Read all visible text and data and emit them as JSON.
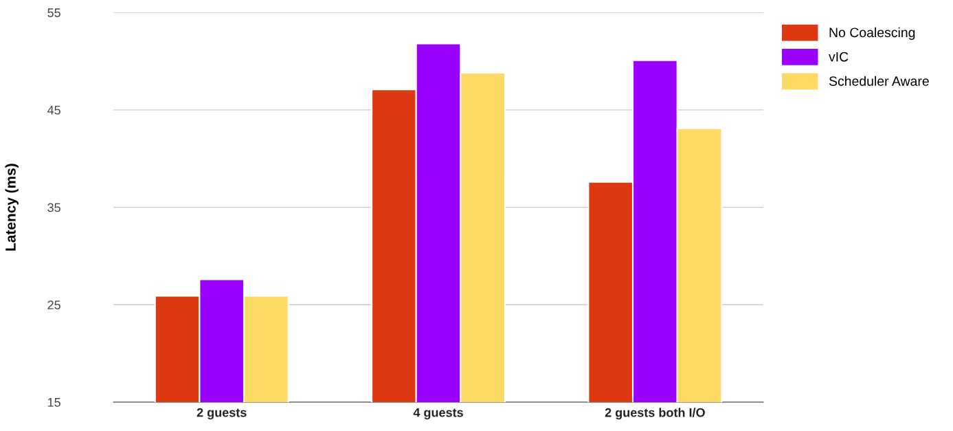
{
  "chart_data": {
    "type": "bar",
    "ylabel": "Latency (ms)",
    "categories": [
      "2 guests",
      "4 guests",
      "2 guests both I/O"
    ],
    "series": [
      {
        "name": "No Coalescing",
        "color": "#dc3912",
        "values": [
          25.9,
          47.1,
          37.6
        ]
      },
      {
        "name": "vIC",
        "color": "#9900ff",
        "values": [
          27.6,
          51.8,
          50.1
        ]
      },
      {
        "name": "Scheduler Aware",
        "color": "#ffd966",
        "values": [
          25.9,
          48.8,
          43.1
        ]
      }
    ],
    "ylim": [
      15,
      55
    ],
    "yticks": [
      15,
      25,
      35,
      45,
      55
    ],
    "grid": "y",
    "legend": "top right"
  }
}
